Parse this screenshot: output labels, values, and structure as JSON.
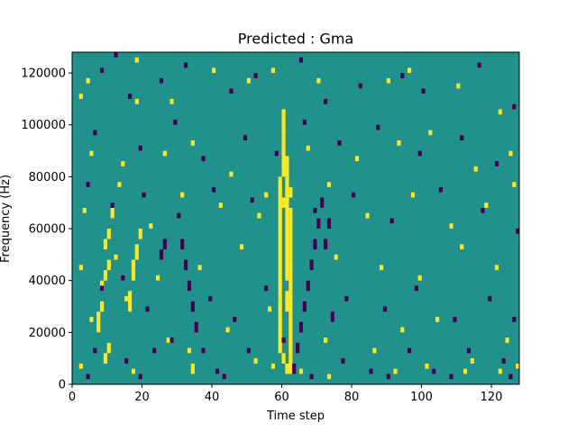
{
  "chart_data": {
    "type": "heatmap",
    "title": "Predicted : Gma",
    "xlabel": "Time step",
    "ylabel": "Frequency (Hz)",
    "xlim": [
      0,
      128
    ],
    "ylim": [
      0,
      128000
    ],
    "x_ticks": [
      0,
      20,
      40,
      60,
      80,
      100,
      120
    ],
    "y_ticks": [
      0,
      20000,
      40000,
      60000,
      80000,
      100000,
      120000
    ],
    "x_tick_labels": [
      "0",
      "20",
      "40",
      "60",
      "80",
      "100",
      "120"
    ],
    "y_tick_labels": [
      "0",
      "20000",
      "40000",
      "60000",
      "80000",
      "100000",
      "120000"
    ],
    "grid": false,
    "n_time_steps": 128,
    "n_freq_bins": 64,
    "freq_bin_width_hz": 2000,
    "colormap": "viridis",
    "value_range": [
      -1,
      1
    ],
    "colors": {
      "-1": "#440154",
      "0": "#21918c",
      "1": "#fde725"
    },
    "background_value": 0,
    "cells_high": [
      [
        7,
        10,
        2
      ],
      [
        7,
        12,
        2
      ],
      [
        8,
        14,
        2
      ],
      [
        8,
        18,
        2
      ],
      [
        9,
        20,
        2
      ],
      [
        10,
        22,
        2
      ],
      [
        9,
        26,
        2
      ],
      [
        10,
        28,
        2
      ],
      [
        11,
        32,
        2
      ],
      [
        16,
        14,
        4
      ],
      [
        17,
        20,
        4
      ],
      [
        18,
        24,
        3
      ],
      [
        19,
        28,
        2
      ],
      [
        59,
        6,
        10
      ],
      [
        59,
        16,
        14
      ],
      [
        59,
        30,
        10
      ],
      [
        60,
        40,
        8
      ],
      [
        60,
        48,
        4
      ],
      [
        61,
        14,
        4
      ],
      [
        61,
        20,
        10
      ],
      [
        61,
        30,
        10
      ],
      [
        62,
        2,
        4
      ],
      [
        62,
        6,
        10
      ],
      [
        62,
        16,
        8
      ],
      [
        62,
        24,
        6
      ],
      [
        60,
        4,
        2
      ],
      [
        61,
        2,
        2
      ],
      [
        60,
        34,
        2
      ],
      [
        61,
        36,
        2
      ],
      [
        61,
        40,
        2
      ],
      [
        61,
        42,
        2
      ],
      [
        62,
        30,
        2
      ],
      [
        62,
        32,
        2
      ],
      [
        62,
        36,
        2
      ],
      [
        18,
        62,
        1
      ],
      [
        4,
        58,
        1
      ],
      [
        2,
        55,
        1
      ],
      [
        18,
        54,
        1
      ],
      [
        28,
        54,
        1
      ],
      [
        40,
        60,
        1
      ],
      [
        50,
        58,
        1
      ],
      [
        57,
        60,
        1
      ],
      [
        60,
        52,
        1
      ],
      [
        70,
        58,
        1
      ],
      [
        90,
        58,
        1
      ],
      [
        96,
        60,
        1
      ],
      [
        110,
        57,
        1
      ],
      [
        122,
        52,
        1
      ],
      [
        5,
        44,
        1
      ],
      [
        14,
        42,
        1
      ],
      [
        26,
        44,
        1
      ],
      [
        34,
        46,
        1
      ],
      [
        45,
        40,
        1
      ],
      [
        55,
        36,
        1
      ],
      [
        67,
        45,
        1
      ],
      [
        81,
        43,
        1
      ],
      [
        93,
        46,
        1
      ],
      [
        102,
        48,
        1
      ],
      [
        115,
        41,
        1
      ],
      [
        125,
        44,
        1
      ],
      [
        3,
        33,
        1
      ],
      [
        13,
        38,
        1
      ],
      [
        22,
        30,
        1
      ],
      [
        31,
        36,
        1
      ],
      [
        42,
        34,
        1
      ],
      [
        53,
        32,
        1
      ],
      [
        73,
        38,
        1
      ],
      [
        84,
        32,
        1
      ],
      [
        97,
        36,
        1
      ],
      [
        108,
        30,
        1
      ],
      [
        118,
        34,
        1
      ],
      [
        126,
        38,
        1
      ],
      [
        2,
        22,
        1
      ],
      [
        12,
        24,
        1
      ],
      [
        24,
        20,
        1
      ],
      [
        36,
        22,
        1
      ],
      [
        48,
        26,
        1
      ],
      [
        56,
        14,
        1
      ],
      [
        75,
        24,
        1
      ],
      [
        88,
        22,
        1
      ],
      [
        99,
        20,
        1
      ],
      [
        111,
        26,
        1
      ],
      [
        121,
        22,
        1
      ],
      [
        5,
        12,
        1
      ],
      [
        15,
        16,
        1
      ],
      [
        27,
        8,
        1
      ],
      [
        33,
        6,
        1
      ],
      [
        44,
        10,
        1
      ],
      [
        52,
        4,
        1
      ],
      [
        72,
        8,
        1
      ],
      [
        86,
        6,
        1
      ],
      [
        94,
        10,
        1
      ],
      [
        104,
        12,
        1
      ],
      [
        114,
        4,
        1
      ],
      [
        124,
        8,
        1
      ],
      [
        9,
        4,
        2
      ],
      [
        10,
        6,
        2
      ],
      [
        2,
        3,
        1
      ],
      [
        17,
        2,
        1
      ],
      [
        34,
        2,
        2
      ],
      [
        57,
        3,
        1
      ],
      [
        65,
        2,
        1
      ],
      [
        73,
        1,
        1
      ],
      [
        92,
        2,
        1
      ],
      [
        101,
        3,
        1
      ],
      [
        112,
        2,
        1
      ],
      [
        122,
        2,
        1
      ],
      [
        127,
        3,
        1
      ]
    ],
    "cells_low": [
      [
        8,
        60,
        1
      ],
      [
        12,
        63,
        1
      ],
      [
        16,
        55,
        1
      ],
      [
        25,
        58,
        1
      ],
      [
        32,
        61,
        1
      ],
      [
        45,
        56,
        1
      ],
      [
        52,
        59,
        1
      ],
      [
        65,
        62,
        1
      ],
      [
        72,
        54,
        1
      ],
      [
        82,
        57,
        1
      ],
      [
        94,
        59,
        1
      ],
      [
        100,
        56,
        1
      ],
      [
        116,
        61,
        1
      ],
      [
        126,
        53,
        1
      ],
      [
        6,
        48,
        1
      ],
      [
        19,
        45,
        1
      ],
      [
        29,
        50,
        1
      ],
      [
        37,
        43,
        1
      ],
      [
        49,
        47,
        1
      ],
      [
        58,
        44,
        1
      ],
      [
        66,
        50,
        1
      ],
      [
        76,
        46,
        1
      ],
      [
        87,
        49,
        1
      ],
      [
        99,
        44,
        1
      ],
      [
        111,
        47,
        1
      ],
      [
        121,
        42,
        1
      ],
      [
        4,
        38,
        1
      ],
      [
        11,
        34,
        1
      ],
      [
        20,
        36,
        1
      ],
      [
        30,
        32,
        1
      ],
      [
        40,
        37,
        1
      ],
      [
        51,
        35,
        1
      ],
      [
        69,
        33,
        1
      ],
      [
        80,
        36,
        1
      ],
      [
        91,
        31,
        1
      ],
      [
        105,
        37,
        1
      ],
      [
        117,
        33,
        1
      ],
      [
        127,
        29,
        1
      ],
      [
        25,
        24,
        2
      ],
      [
        26,
        26,
        2
      ],
      [
        31,
        26,
        2
      ],
      [
        32,
        22,
        2
      ],
      [
        33,
        18,
        2
      ],
      [
        34,
        14,
        2
      ],
      [
        35,
        10,
        2
      ],
      [
        28,
        8,
        1
      ],
      [
        37,
        6,
        1
      ],
      [
        63,
        2,
        2
      ],
      [
        64,
        6,
        2
      ],
      [
        65,
        10,
        2
      ],
      [
        66,
        14,
        2
      ],
      [
        67,
        18,
        2
      ],
      [
        68,
        22,
        2
      ],
      [
        69,
        26,
        2
      ],
      [
        70,
        30,
        2
      ],
      [
        71,
        34,
        2
      ],
      [
        72,
        26,
        2
      ],
      [
        73,
        30,
        2
      ],
      [
        74,
        12,
        2
      ],
      [
        8,
        18,
        1
      ],
      [
        14,
        20,
        1
      ],
      [
        21,
        14,
        1
      ],
      [
        39,
        16,
        1
      ],
      [
        46,
        12,
        1
      ],
      [
        55,
        18,
        1
      ],
      [
        78,
        16,
        1
      ],
      [
        89,
        14,
        1
      ],
      [
        98,
        18,
        1
      ],
      [
        109,
        12,
        1
      ],
      [
        119,
        16,
        1
      ],
      [
        126,
        12,
        1
      ],
      [
        6,
        6,
        1
      ],
      [
        15,
        4,
        1
      ],
      [
        23,
        6,
        1
      ],
      [
        41,
        2,
        1
      ],
      [
        50,
        6,
        1
      ],
      [
        60,
        8,
        1
      ],
      [
        77,
        4,
        1
      ],
      [
        85,
        2,
        1
      ],
      [
        96,
        6,
        1
      ],
      [
        103,
        2,
        1
      ],
      [
        113,
        6,
        1
      ],
      [
        123,
        4,
        1
      ],
      [
        4,
        1,
        1
      ],
      [
        19,
        1,
        1
      ],
      [
        43,
        1,
        1
      ],
      [
        68,
        1,
        1
      ],
      [
        90,
        1,
        1
      ],
      [
        108,
        1,
        1
      ],
      [
        125,
        1,
        1
      ]
    ]
  }
}
